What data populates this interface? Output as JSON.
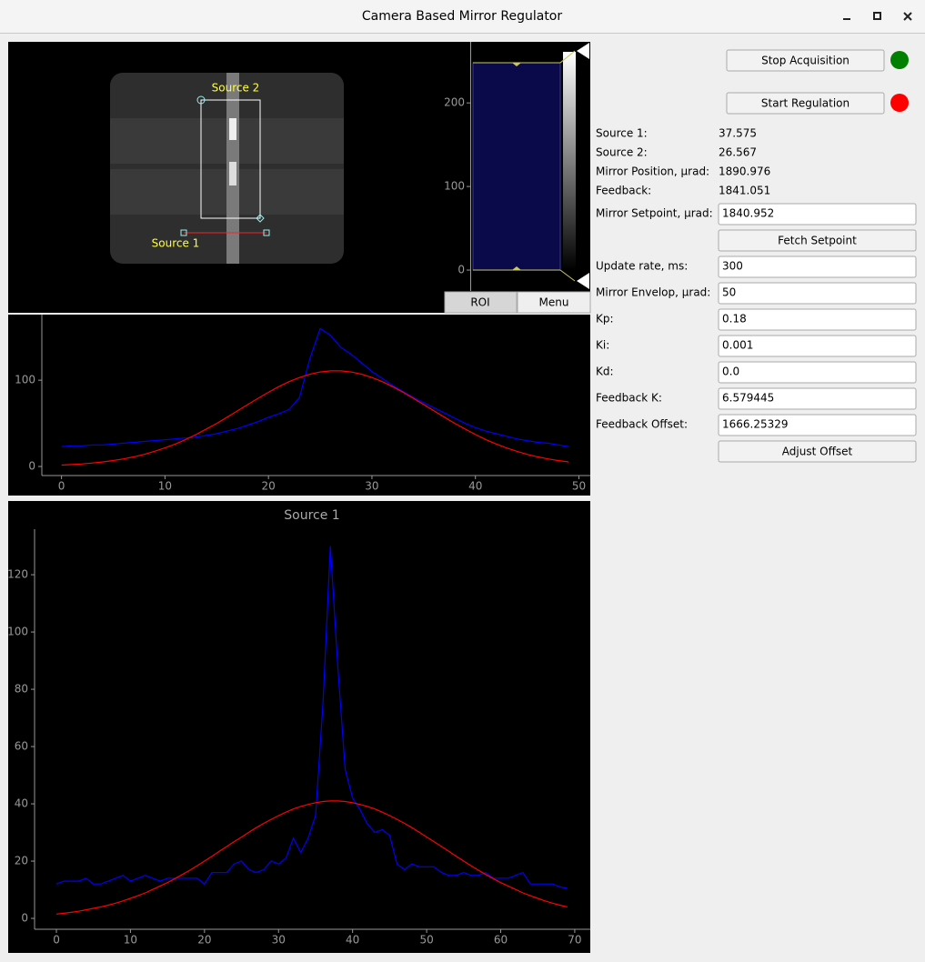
{
  "window": {
    "title": "Camera Based Mirror Regulator"
  },
  "image_view": {
    "roi_labels": [
      "Source 2",
      "Source 1"
    ]
  },
  "histogram": {
    "ylim": [
      -25,
      272
    ],
    "yticks": [
      0,
      100,
      200
    ],
    "levels": [
      0,
      248
    ],
    "buttons": [
      "ROI",
      "Menu"
    ]
  },
  "chart_data": [
    {
      "type": "line",
      "xlim": [
        -1.9,
        51.1
      ],
      "ylim": [
        -10.5,
        176
      ],
      "xticks": [
        0,
        10,
        20,
        30,
        40,
        50
      ],
      "yticks": [
        0,
        100
      ],
      "x": [
        0,
        1,
        2,
        3,
        4,
        5,
        6,
        7,
        8,
        9,
        10,
        11,
        12,
        13,
        14,
        15,
        16,
        17,
        18,
        19,
        20,
        21,
        22,
        23,
        24,
        25,
        26,
        27,
        28,
        29,
        30,
        31,
        32,
        33,
        34,
        35,
        36,
        37,
        38,
        39,
        40,
        41,
        42,
        43,
        44,
        45,
        46,
        47,
        48,
        49
      ],
      "series": [
        {
          "color": "#0000ff",
          "values": [
            23,
            24,
            24,
            25,
            25,
            26,
            27,
            28,
            29,
            30,
            31,
            32,
            33,
            34,
            36,
            38,
            41,
            44,
            48,
            52,
            57,
            61,
            66,
            80,
            125,
            160,
            152,
            138,
            130,
            120,
            110,
            102,
            94,
            87,
            80,
            74,
            68,
            62,
            56,
            50,
            45,
            41,
            38,
            35,
            32,
            30,
            28,
            27,
            25,
            23
          ]
        },
        {
          "color": "#ff0000",
          "values": [
            1.6,
            2.2,
            3.0,
            4.0,
            5.3,
            6.9,
            8.8,
            11.2,
            14.1,
            17.6,
            21.5,
            26.1,
            31.2,
            37.0,
            43.4,
            50.0,
            57.1,
            64.4,
            71.8,
            79.1,
            86.0,
            92.5,
            98.3,
            103.1,
            106.9,
            109.5,
            110.8,
            110.8,
            109.5,
            106.9,
            103.1,
            98.3,
            92.5,
            86.0,
            79.1,
            71.8,
            64.4,
            57.1,
            50.0,
            43.4,
            37.0,
            31.2,
            26.1,
            21.5,
            17.6,
            14.1,
            11.2,
            8.8,
            6.9,
            5.3
          ]
        }
      ]
    },
    {
      "type": "line",
      "title": "Source 1",
      "xlim": [
        -2.95,
        72.1
      ],
      "ylim": [
        -3.8,
        135.9
      ],
      "xticks": [
        0,
        10,
        20,
        30,
        40,
        50,
        60,
        70
      ],
      "yticks": [
        0,
        20,
        40,
        60,
        80,
        100,
        120
      ],
      "x": [
        0,
        1,
        2,
        3,
        4,
        5,
        6,
        7,
        8,
        9,
        10,
        11,
        12,
        13,
        14,
        15,
        16,
        17,
        18,
        19,
        20,
        21,
        22,
        23,
        24,
        25,
        26,
        27,
        28,
        29,
        30,
        31,
        32,
        33,
        34,
        35,
        36,
        37,
        38,
        39,
        40,
        41,
        42,
        43,
        44,
        45,
        46,
        47,
        48,
        49,
        50,
        51,
        52,
        53,
        54,
        55,
        56,
        57,
        58,
        59,
        60,
        61,
        62,
        63,
        64,
        65,
        66,
        67,
        68,
        69
      ],
      "series": [
        {
          "color": "#0000ff",
          "values": [
            12,
            13,
            13,
            13,
            14,
            12,
            12,
            13,
            14,
            15,
            13,
            14,
            15,
            14,
            13,
            14,
            14,
            14,
            14,
            14,
            12,
            16,
            16,
            16,
            19,
            20,
            17,
            16,
            17,
            20,
            19,
            21,
            28,
            23,
            28,
            36,
            75,
            130,
            88,
            52,
            42,
            38,
            33,
            30,
            31,
            29,
            19,
            17,
            19,
            18,
            18,
            18,
            16,
            15,
            15,
            16,
            15,
            15,
            16,
            14,
            14,
            14,
            15,
            16,
            12,
            12,
            12,
            12,
            11,
            10.5
          ]
        },
        {
          "color": "#ff0000",
          "values": [
            1.5,
            1.8,
            2.1,
            2.5,
            3.0,
            3.5,
            4.0,
            4.6,
            5.3,
            6.1,
            7.0,
            7.9,
            8.9,
            10.1,
            11.3,
            12.5,
            13.9,
            15.3,
            16.8,
            18.4,
            20.0,
            21.7,
            23.4,
            25.1,
            26.8,
            28.4,
            30.1,
            31.7,
            33.2,
            34.6,
            35.9,
            37.1,
            38.2,
            39.1,
            39.8,
            40.4,
            40.8,
            41.0,
            41.0,
            40.8,
            40.4,
            39.8,
            39.1,
            38.2,
            37.1,
            35.9,
            34.6,
            33.2,
            31.7,
            30.1,
            28.4,
            26.8,
            25.1,
            23.4,
            21.7,
            20.0,
            18.4,
            16.8,
            15.3,
            13.9,
            12.5,
            11.3,
            10.1,
            8.9,
            7.9,
            7.0,
            6.1,
            5.3,
            4.6,
            4.0
          ]
        }
      ]
    }
  ],
  "controls": {
    "buttons": [
      {
        "label": "Stop Acquisition",
        "status_color": "#008000"
      },
      {
        "label": "Start Regulation",
        "status_color": "#ff0000"
      }
    ],
    "readouts": [
      {
        "label": "Source 1:",
        "value": "37.575"
      },
      {
        "label": "Source 2:",
        "value": "26.567"
      },
      {
        "label": "Mirror Position, µrad:",
        "value": "1890.976"
      },
      {
        "label": "Feedback:",
        "value": "1841.051"
      }
    ],
    "setpoint": {
      "label": "Mirror Setpoint, µrad:",
      "value": "1840.952"
    },
    "fetch": "Fetch Setpoint",
    "fields": [
      {
        "label": "Update rate, ms:",
        "value": "300"
      },
      {
        "label": "Mirror Envelop, µrad:",
        "value": "50"
      },
      {
        "label": "Kp:",
        "value": "0.18"
      },
      {
        "label": "Ki:",
        "value": "0.001"
      },
      {
        "label": "Kd:",
        "value": "0.0"
      },
      {
        "label": "Feedback K:",
        "value": "6.579445"
      },
      {
        "label": "Feedback Offset:",
        "value": "1666.25329"
      }
    ],
    "adjust": "Adjust Offset"
  }
}
